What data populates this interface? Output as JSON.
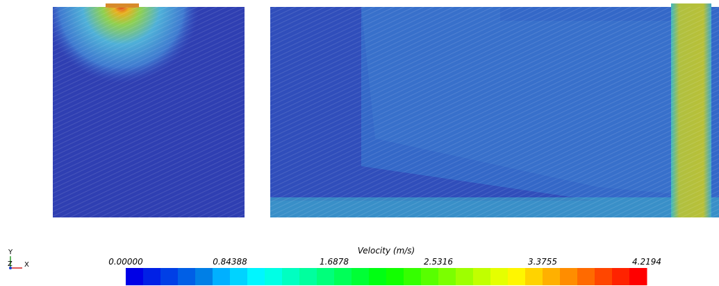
{
  "colorbar": {
    "title": "Velocity (m/s)",
    "labels": [
      "0.00000",
      "0.84388",
      "1.6878",
      "2.5316",
      "3.3755",
      "4.2194"
    ]
  },
  "axes": {
    "y": "Y",
    "z": "Z",
    "x": "X"
  }
}
